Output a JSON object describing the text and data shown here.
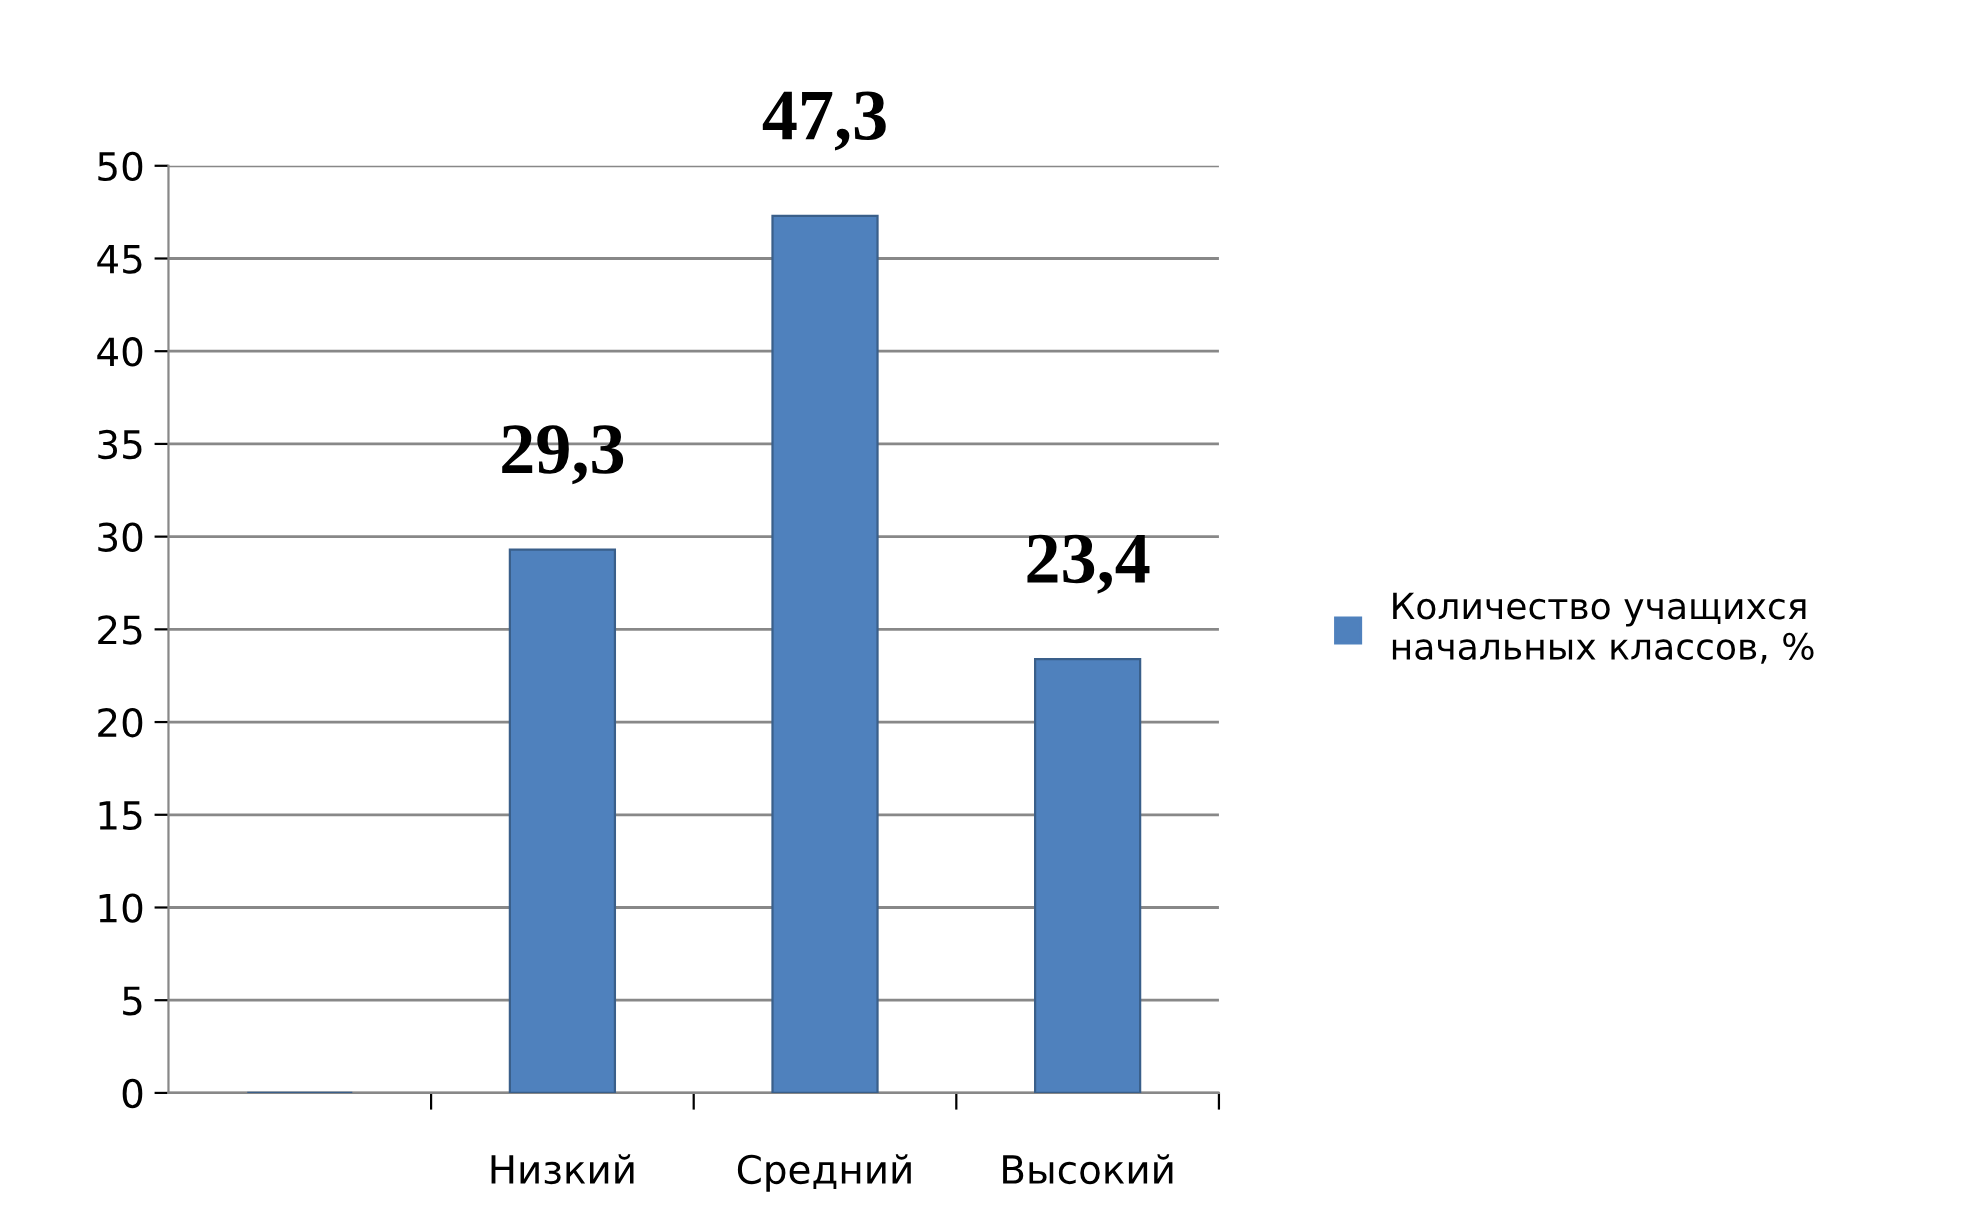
{
  "chart_data": {
    "type": "bar",
    "categories": [
      null,
      "Низкий",
      "Средний",
      "Высокий"
    ],
    "series": [
      {
        "name": "Количество учащихся начальных классов, %",
        "color": "#4f81bd",
        "values": [
          null,
          29.3,
          47.3,
          23.4
        ],
        "value_labels": [
          null,
          "29,3",
          "47,3",
          "23,4"
        ]
      }
    ],
    "ylim": [
      0,
      50
    ],
    "yticks": [
      0,
      5,
      10,
      15,
      20,
      25,
      30,
      35,
      40,
      45,
      50
    ],
    "grid": "y",
    "legend": "right"
  }
}
